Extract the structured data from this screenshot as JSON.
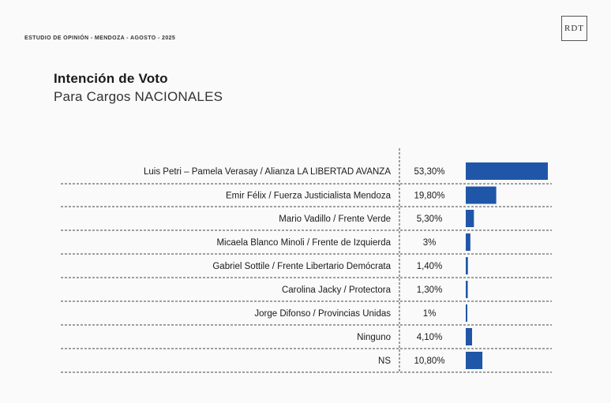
{
  "header": {
    "study_note": "ESTUDIO DE OPINIÓN - MENDOZA - AGOSTO - 2025",
    "logo_text": "RDT"
  },
  "title": "Intención de Voto",
  "subtitle": "Para Cargos NACIONALES",
  "colors": {
    "bar": "#1f56a8",
    "text": "#1a1a1a",
    "divider": "#444444"
  },
  "chart_data": {
    "type": "bar",
    "orientation": "horizontal",
    "categories": [
      "Luis Petri – Pamela Verasay / Alianza LA LIBERTAD AVANZA",
      "Emir Félix / Fuerza Justicialista Mendoza",
      "Mario Vadillo / Frente Verde",
      "Micaela Blanco Minoli / Frente de Izquierda",
      "Gabriel Sottile / Frente Libertario Demócrata",
      "Carolina Jacky / Protectora",
      "Jorge Difonso / Provincias Unidas",
      "Ninguno",
      "NS"
    ],
    "values": [
      53.3,
      19.8,
      5.3,
      3,
      1.4,
      1.3,
      1,
      4.1,
      10.8
    ],
    "value_labels": [
      "53,30%",
      "19,80%",
      "5,30%",
      "3%",
      "1,40%",
      "1,30%",
      "1%",
      "4,10%",
      "10,80%"
    ],
    "xlim": [
      0,
      53.3
    ],
    "grid": false
  }
}
